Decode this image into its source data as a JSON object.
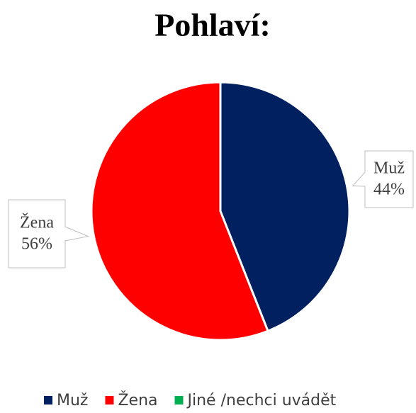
{
  "chart_data": {
    "type": "pie",
    "title": "Pohlaví:",
    "categories": [
      "Muž",
      "Žena",
      "Jiné /nechci uvádět"
    ],
    "values": [
      44,
      56,
      0
    ],
    "value_labels": [
      "44%",
      "56%",
      null
    ],
    "colors": [
      "#002060",
      "#ff0000",
      "#00b050"
    ],
    "legend": "bottom"
  }
}
